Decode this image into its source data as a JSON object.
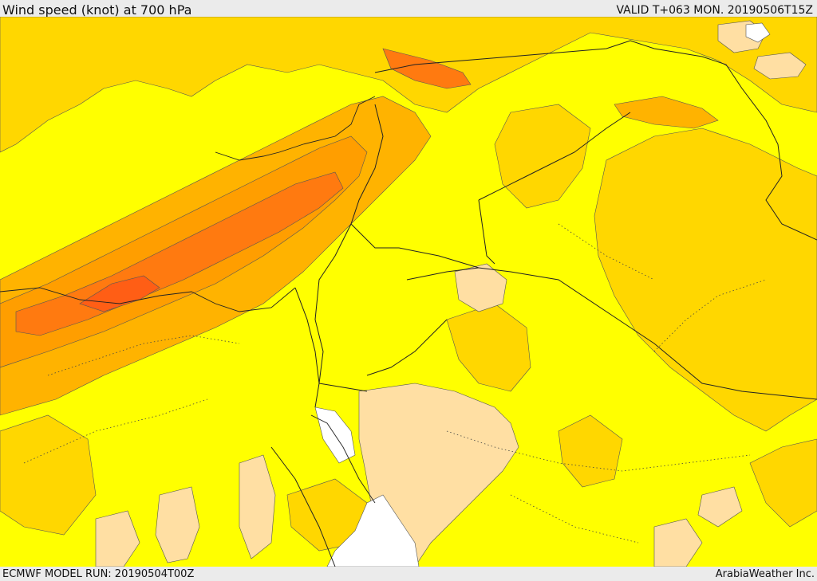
{
  "header": {
    "title": "Wind speed (knot) at 700 hPa",
    "valid": "VALID T+063 MON. 20190506T15Z"
  },
  "footer": {
    "model_run": "ECMWF MODEL RUN: 20190504T00Z",
    "credit": "ArabiaWeather Inc."
  },
  "map": {
    "variable": "wind speed",
    "level_hpa": 700,
    "units": "knot",
    "region": "Eastern Mediterranean / Levant / Northern Arabia",
    "colors": {
      "band_lowest": "#ffdfa3",
      "band_low": "#ffff00",
      "band_mid": "#ffd700",
      "band_high": "#ffb300",
      "band_higher": "#ff9e00",
      "band_highest": "#ff7a10",
      "band_peak": "#ff5e15",
      "no_data": "#ffffff",
      "contour": "#555555",
      "border": "#222222"
    }
  }
}
